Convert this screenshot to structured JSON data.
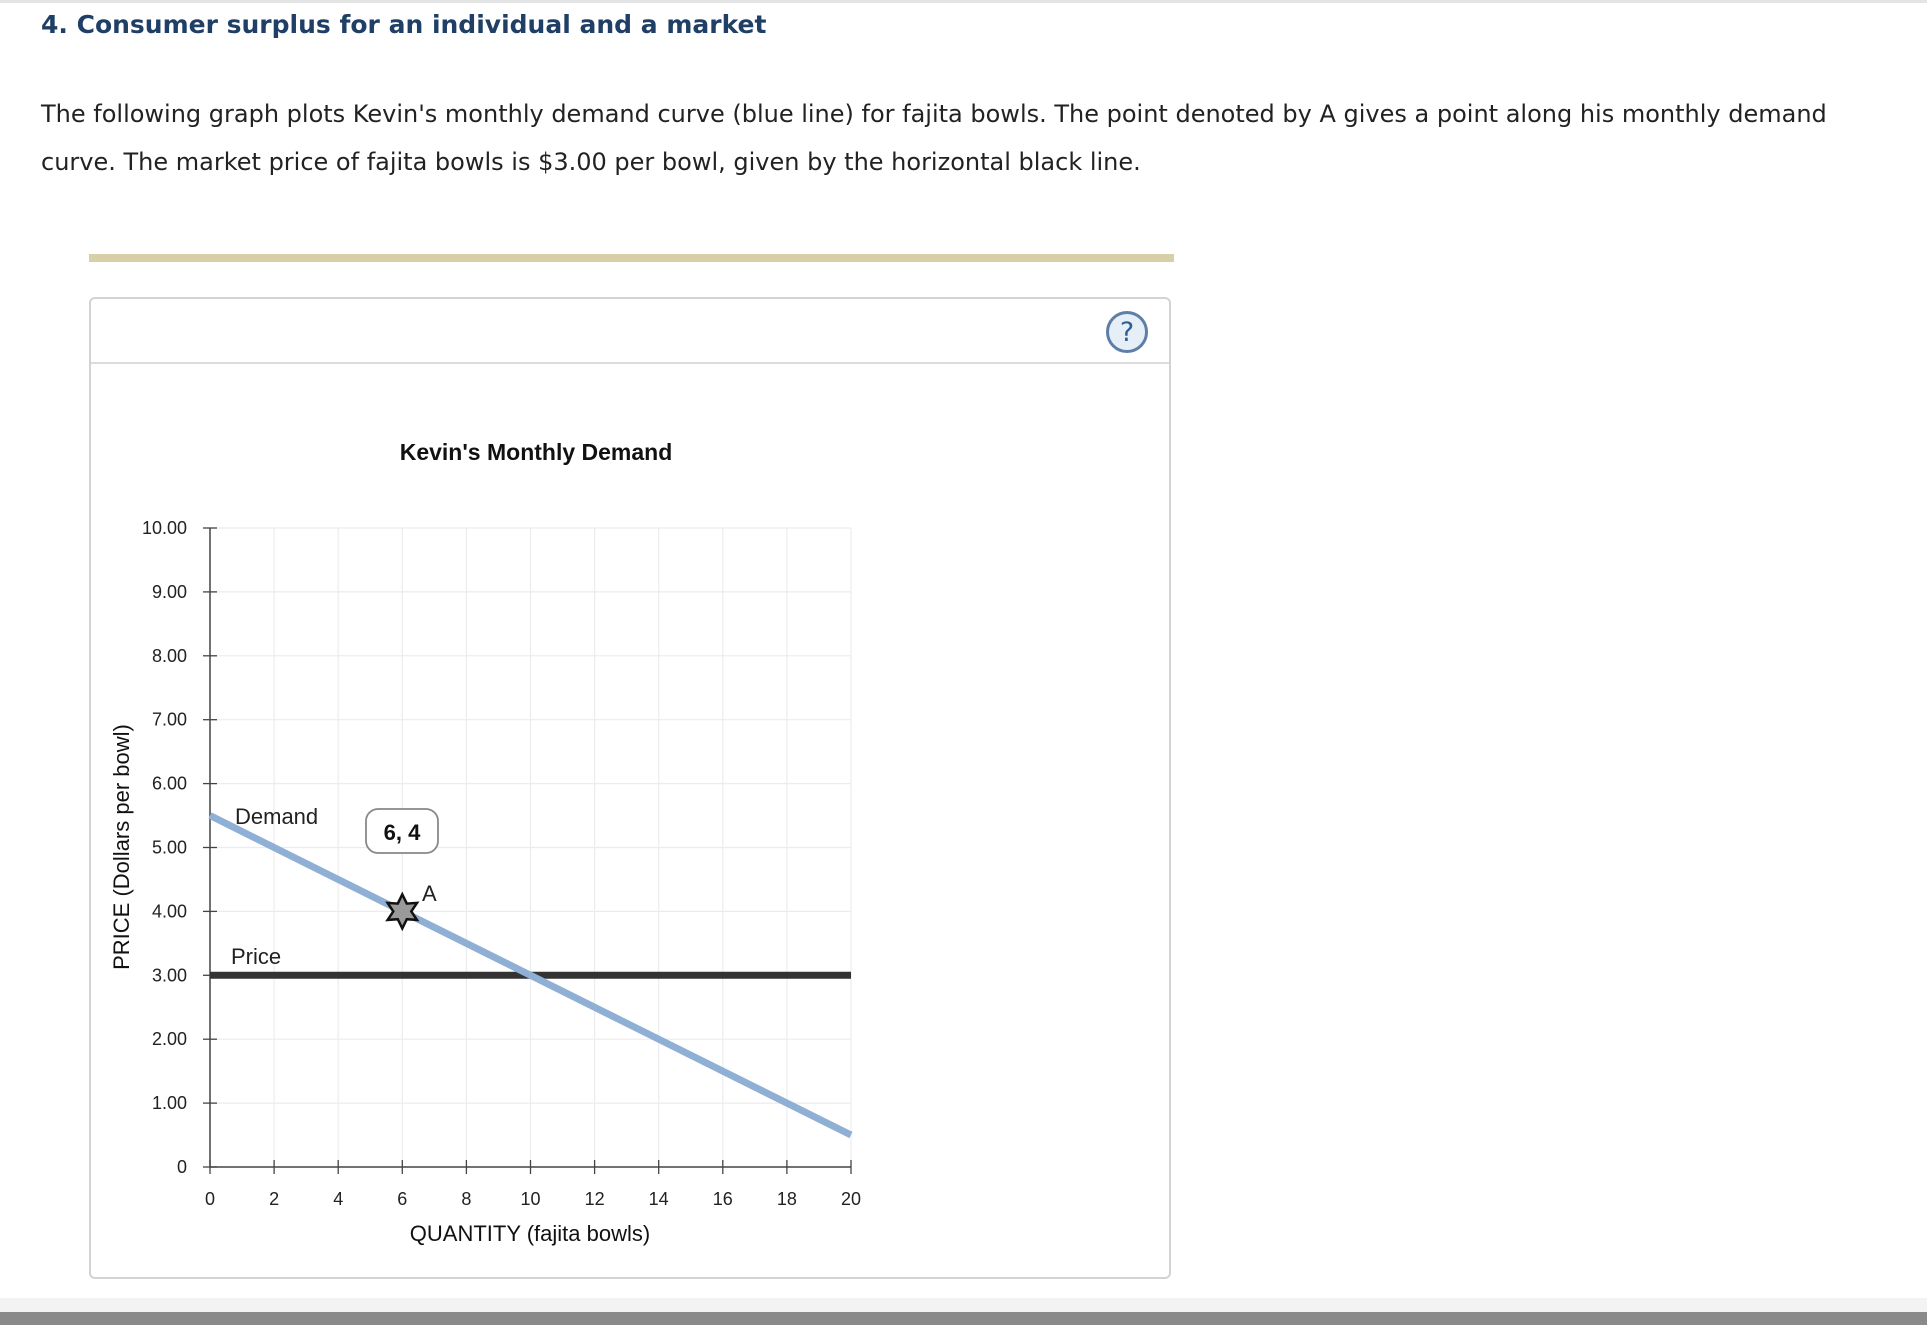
{
  "question": {
    "title": "4. Consumer surplus for an individual and a market",
    "intro": "The following graph plots Kevin's monthly demand curve (blue line) for fajita bowls. The point denoted by A gives a point along his monthly demand curve. The market price of fajita bowls is $3.00 per bowl, given by the horizontal black line."
  },
  "help_button": {
    "label": "?",
    "icon": "question-circle-icon"
  },
  "colors": {
    "demand": "#8fb0d4",
    "price": "#333333",
    "title": "#1f3f66",
    "divider": "#d8cfa9"
  },
  "chart_data": {
    "type": "line",
    "title": "Kevin's Monthly Demand",
    "xlabel": "QUANTITY (fajita bowls)",
    "ylabel": "PRICE (Dollars per bowl)",
    "xlim": [
      0,
      20
    ],
    "ylim": [
      0,
      10
    ],
    "grid": true,
    "x_ticks": [
      "0",
      "2",
      "4",
      "6",
      "8",
      "10",
      "12",
      "14",
      "16",
      "18",
      "20"
    ],
    "y_ticks": [
      "0",
      "1.00",
      "2.00",
      "3.00",
      "4.00",
      "5.00",
      "6.00",
      "7.00",
      "8.00",
      "9.00",
      "10.00"
    ],
    "series": [
      {
        "name": "Demand",
        "points": [
          [
            0,
            5.5
          ],
          [
            20,
            0.5
          ]
        ],
        "color": "#8fb0d4"
      },
      {
        "name": "Price",
        "points": [
          [
            0,
            3
          ],
          [
            20,
            3
          ]
        ],
        "color": "#333333"
      }
    ],
    "point": {
      "label": "A",
      "x": 6,
      "y": 4,
      "value_label": "6, 4"
    }
  }
}
